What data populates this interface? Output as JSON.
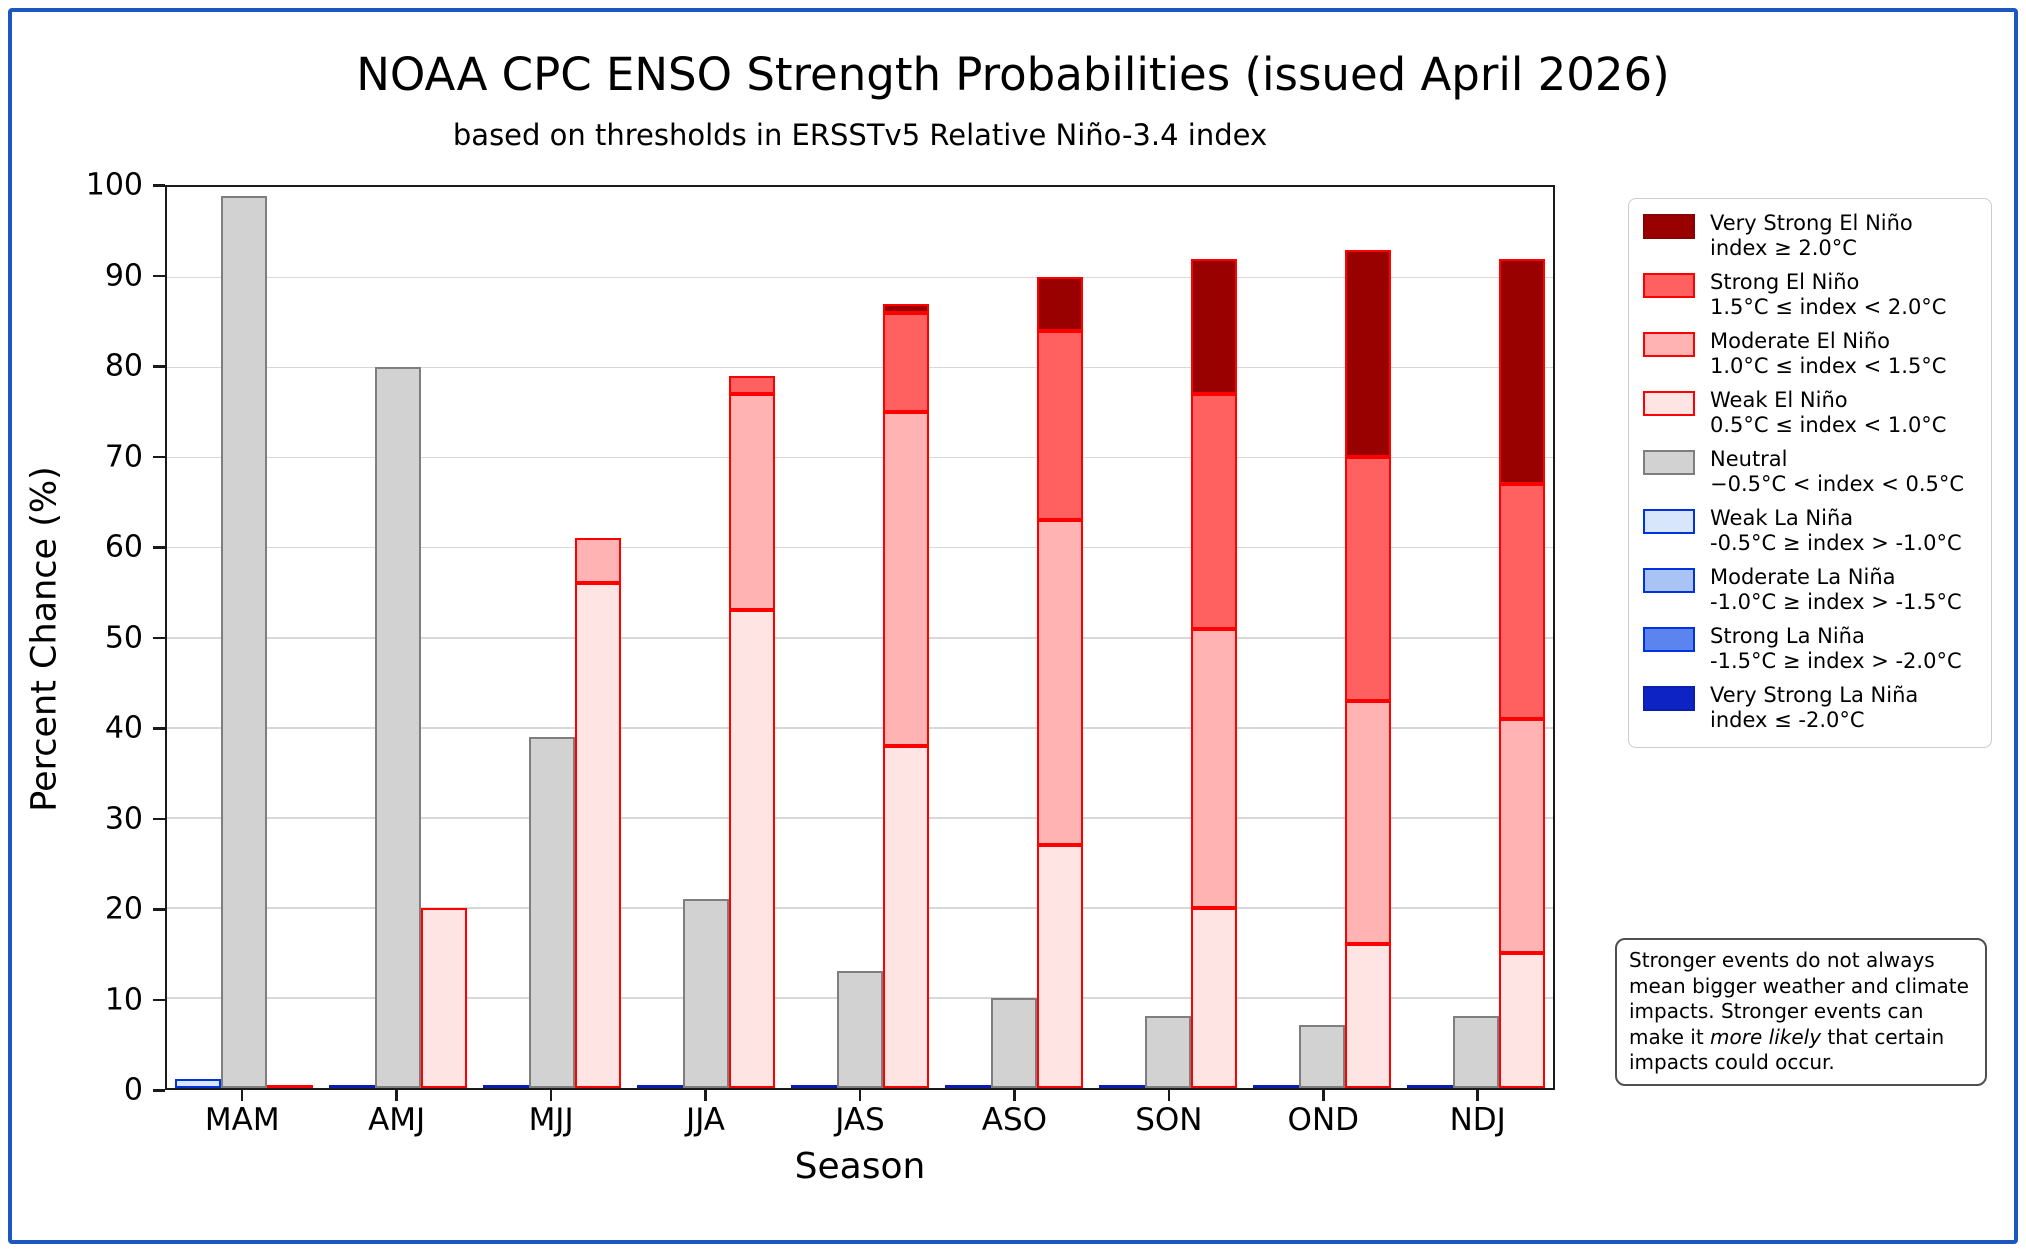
{
  "title": "NOAA CPC ENSO Strength Probabilities (issued April 2026)",
  "subtitle": "based on thresholds in ERSSTv5 Relative Niño-3.4 index",
  "axes": {
    "ylabel": "Percent Chance (%)",
    "xlabel": "Season",
    "yticks": [
      0,
      10,
      20,
      30,
      40,
      50,
      60,
      70,
      80,
      90,
      100
    ],
    "ylim": [
      0,
      100
    ],
    "grid": "horizontal gridlines at 10..90"
  },
  "chart_data": {
    "type": "bar",
    "layout": "grouped: per season 3 columns (La Niña stack, Neutral, El Niño stack), stacked percentages",
    "categories": [
      "MAM",
      "AMJ",
      "MJJ",
      "JJA",
      "JAS",
      "ASO",
      "SON",
      "OND",
      "NDJ"
    ],
    "title": "NOAA CPC ENSO Strength Probabilities (issued April 2026)",
    "xlabel": "Season",
    "ylabel": "Percent Chance (%)",
    "ylim": [
      0,
      100
    ],
    "legend_position": "upper right, outside axes",
    "series": [
      {
        "name": "Very Strong El Niño",
        "group": "el_nino",
        "values": [
          0,
          0,
          0,
          0,
          1,
          6,
          15,
          23,
          25
        ],
        "fill": "#990000",
        "edge": "#ff0000"
      },
      {
        "name": "Strong El Niño",
        "group": "el_nino",
        "values": [
          0,
          0,
          0,
          2,
          11,
          21,
          26,
          27,
          26
        ],
        "fill": "#ff6161",
        "edge": "#ff0000"
      },
      {
        "name": "Moderate El Niño",
        "group": "el_nino",
        "values": [
          0,
          0,
          5,
          24,
          37,
          36,
          31,
          27,
          26
        ],
        "fill": "#ffb3b3",
        "edge": "#ff0000"
      },
      {
        "name": "Weak El Niño",
        "group": "el_nino",
        "values": [
          0,
          20,
          56,
          53,
          38,
          27,
          20,
          16,
          15
        ],
        "fill": "#ffe4e4",
        "edge": "#ff0000"
      },
      {
        "name": "Neutral",
        "group": "neutral",
        "values": [
          99,
          80,
          39,
          21,
          13,
          10,
          8,
          7,
          8
        ],
        "fill": "#d2d2d2",
        "edge": "#7e7e7e"
      },
      {
        "name": "Weak La Niña",
        "group": "la_nina",
        "values": [
          1,
          0,
          0,
          0,
          0,
          0,
          0,
          0,
          0
        ],
        "fill": "#d8e6fb",
        "edge": "#0032e0"
      },
      {
        "name": "Moderate La Niña",
        "group": "la_nina",
        "values": [
          0,
          0,
          0,
          0,
          0,
          0,
          0,
          0,
          0
        ],
        "fill": "#a8c3f4",
        "edge": "#0032e0"
      },
      {
        "name": "Strong La Niña",
        "group": "la_nina",
        "values": [
          0,
          0,
          0,
          0,
          0,
          0,
          0,
          0,
          0
        ],
        "fill": "#5b84ef",
        "edge": "#0032e0"
      },
      {
        "name": "Very Strong La Niña",
        "group": "la_nina",
        "values": [
          0,
          0,
          0,
          0,
          0,
          0,
          0,
          0,
          0
        ],
        "fill": "#0d23c3",
        "edge": "#0a1fb0"
      }
    ],
    "el_nino_stack_totals": [
      0,
      20,
      61,
      79,
      87,
      90,
      92,
      93,
      92
    ],
    "la_nina_stack_totals": [
      1,
      0,
      0,
      0,
      0,
      0,
      0,
      0,
      0
    ],
    "zero_stack_line_colors": {
      "la_nina": "#0b1db0",
      "el_nino": "#ff0000"
    }
  },
  "legend": {
    "items": [
      {
        "line1": "Very Strong El Niño",
        "line2": "index ≥ 2.0°C",
        "fill": "#990000",
        "border": "#8b0000"
      },
      {
        "line1": "Strong El Niño",
        "line2": "1.5°C ≤ index < 2.0°C",
        "fill": "#ff6161",
        "border": "#ff0000"
      },
      {
        "line1": "Moderate El Niño",
        "line2": "1.0°C ≤ index < 1.5°C",
        "fill": "#ffb3b3",
        "border": "#ff0000"
      },
      {
        "line1": "Weak El Niño",
        "line2": "0.5°C ≤ index < 1.0°C",
        "fill": "#ffe4e4",
        "border": "#ff0000"
      },
      {
        "line1": "Neutral",
        "line2": "−0.5°C < index < 0.5°C",
        "fill": "#d2d2d2",
        "border": "#7e7e7e"
      },
      {
        "line1": "Weak La Niña",
        "line2": "-0.5°C ≥ index > -1.0°C",
        "fill": "#d8e6fb",
        "border": "#0032e0"
      },
      {
        "line1": "Moderate La Niña",
        "line2": "-1.0°C ≥ index > -1.5°C",
        "fill": "#a8c3f4",
        "border": "#0032e0"
      },
      {
        "line1": "Strong La Niña",
        "line2": "-1.5°C ≥ index > -2.0°C",
        "fill": "#5b84ef",
        "border": "#0032e0"
      },
      {
        "line1": "Very Strong La Niña",
        "line2": "index ≤ -2.0°C",
        "fill": "#0d23c3",
        "border": "#0a1fb0"
      }
    ]
  },
  "note": {
    "part1": "Stronger events do not always mean bigger weather and climate impacts. Stronger events can make it ",
    "italic": "more likely",
    "part2": " that certain impacts could occur."
  },
  "colors": {
    "figure_border": "#1c56c3",
    "spine": "#1a1a1a",
    "gridline": "#d8d8d8",
    "background": "#ffffff"
  }
}
